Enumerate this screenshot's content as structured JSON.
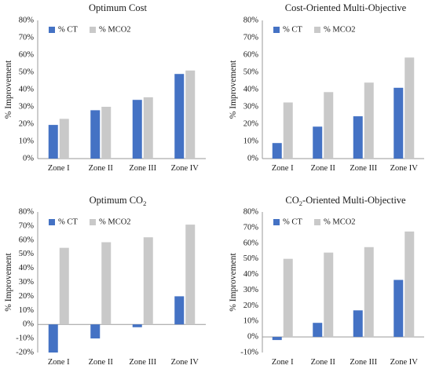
{
  "chart_data": [
    {
      "type": "bar",
      "title": "Optimum Cost",
      "title_subscript": "",
      "ylabel": "% Improvement",
      "categories": [
        "Zone I",
        "Zone II",
        "Zone III",
        "Zone IV"
      ],
      "yticks": [
        "0%",
        "10%",
        "20%",
        "30%",
        "40%",
        "50%",
        "60%",
        "70%",
        "80%"
      ],
      "ylim": [
        0,
        80
      ],
      "legend_position": "top-left",
      "series": [
        {
          "name": "% CT",
          "color": "#4472C4",
          "values": [
            19.5,
            28,
            34,
            49
          ]
        },
        {
          "name": "% MCO2",
          "color": "#C9C9C9",
          "values": [
            23,
            30,
            35.5,
            51
          ]
        }
      ]
    },
    {
      "type": "bar",
      "title": "Cost-Oriented Multi-Objective",
      "title_subscript": "",
      "ylabel": "% Improvement",
      "categories": [
        "Zone I",
        "Zone II",
        "Zone III",
        "Zone IV"
      ],
      "yticks": [
        "0%",
        "10%",
        "20%",
        "30%",
        "40%",
        "50%",
        "60%",
        "70%",
        "80%"
      ],
      "ylim": [
        0,
        80
      ],
      "legend_position": "top-left",
      "series": [
        {
          "name": "% CT",
          "color": "#4472C4",
          "values": [
            9,
            18.5,
            24.5,
            41
          ]
        },
        {
          "name": "% MCO2",
          "color": "#C9C9C9",
          "values": [
            32.5,
            38.5,
            44,
            58.5
          ]
        }
      ]
    },
    {
      "type": "bar",
      "title": "Optimum CO",
      "title_subscript": "2",
      "ylabel": "% Improvement",
      "categories": [
        "Zone I",
        "Zone II",
        "Zone III",
        "Zone IV"
      ],
      "yticks": [
        "-20%",
        "-10%",
        "0%",
        "10%",
        "20%",
        "30%",
        "40%",
        "50%",
        "60%",
        "70%",
        "80%"
      ],
      "ylim": [
        -20,
        80
      ],
      "legend_position": "top-left",
      "series": [
        {
          "name": "% CT",
          "color": "#4472C4",
          "values": [
            -20,
            -10,
            -2,
            20
          ]
        },
        {
          "name": "% MCO2",
          "color": "#C9C9C9",
          "values": [
            54.5,
            58.5,
            62,
            71
          ]
        }
      ]
    },
    {
      "type": "bar",
      "title": "-Oriented Multi-Objective",
      "title_prefix": "CO",
      "title_subscript": "2",
      "ylabel": "% Improvement",
      "categories": [
        "Zone I",
        "Zone II",
        "Zone III",
        "Zone IV"
      ],
      "yticks": [
        "-10%",
        "0%",
        "10%",
        "20%",
        "30%",
        "40%",
        "50%",
        "60%",
        "70%",
        "80%"
      ],
      "ylim": [
        -10,
        80
      ],
      "legend_position": "top-left",
      "series": [
        {
          "name": "% CT",
          "color": "#4472C4",
          "values": [
            -2,
            9,
            17,
            36.5
          ]
        },
        {
          "name": "% MCO2",
          "color": "#C9C9C9",
          "values": [
            50,
            54,
            57.5,
            67.5
          ]
        }
      ]
    }
  ]
}
